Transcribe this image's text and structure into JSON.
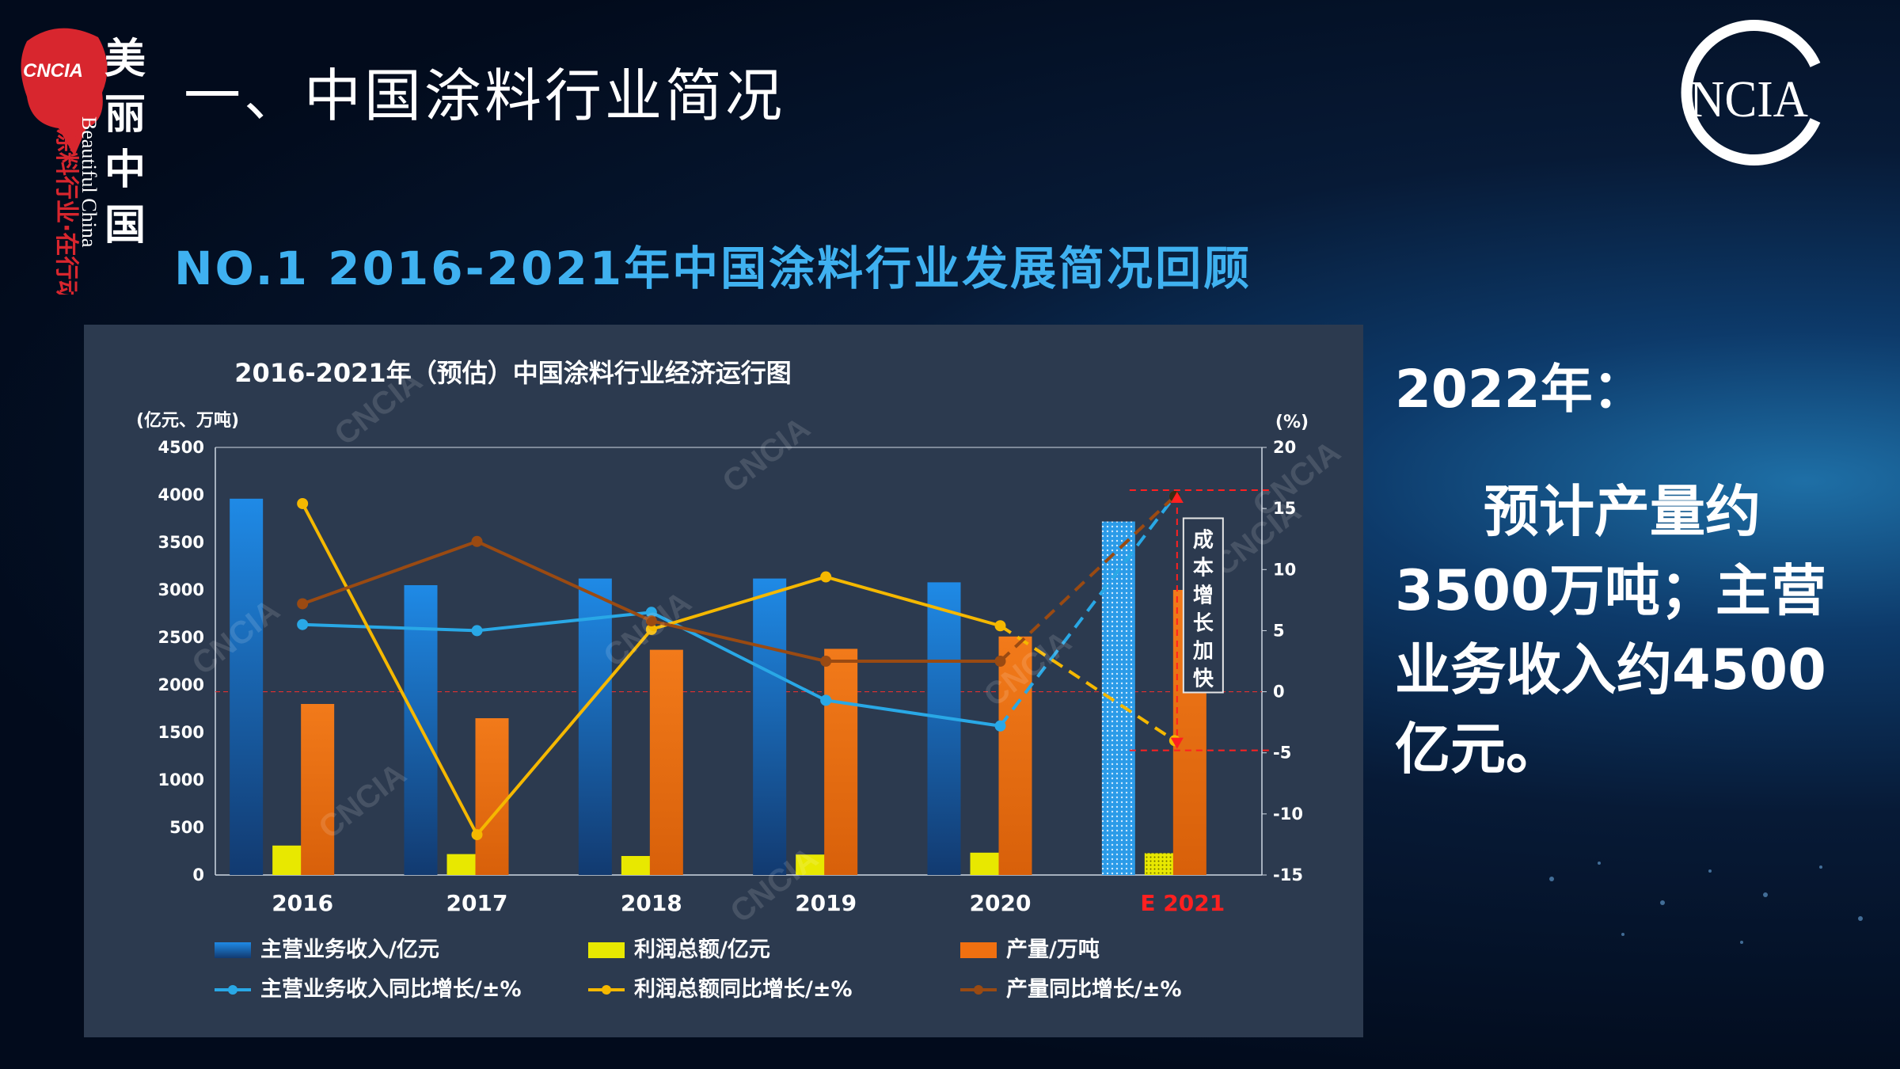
{
  "header": {
    "title": "一、中国涂料行业简况",
    "subtitle": "NO.1 2016-2021年中国涂料行业发展简况回顾"
  },
  "logo_left": {
    "badge": "CNCIA",
    "slogan_cn": "美丽中国",
    "slogan_en": "Beautiful China",
    "slogan_sub": "涂料行业·在行动"
  },
  "logo_right": {
    "text": "CNCIA"
  },
  "colors": {
    "revenue": "#1a7fd6",
    "profit": "#e8e800",
    "output": "#f07010",
    "revenue_growth": "#29a8e6",
    "profit_growth": "#f5b800",
    "output_growth": "#9a4a12",
    "panel": "#2c3a4f",
    "highlight": "#ff2020"
  },
  "chart_data": {
    "type": "bar",
    "title": "2016-2021年（预估）中国涂料行业经济运行图",
    "ylabel_left": "(亿元、万吨)",
    "ylabel_right": "(%)",
    "ylim_left": [
      0,
      4500
    ],
    "ylim_right": [
      -15,
      20
    ],
    "yticks_left": [
      "0",
      "500",
      "1000",
      "1500",
      "2000",
      "2500",
      "3000",
      "3500",
      "4000",
      "4500"
    ],
    "yticks_right": [
      "-15",
      "-10",
      "-5",
      "0",
      "5",
      "10",
      "15",
      "20"
    ],
    "categories": [
      "2016",
      "2017",
      "2018",
      "2019",
      "2020",
      "E 2021"
    ],
    "bar_series": [
      {
        "name": "主营业务收入/亿元",
        "values": [
          3960,
          3050,
          3120,
          3120,
          3080,
          3720
        ]
      },
      {
        "name": "利润总额/亿元",
        "values": [
          310,
          220,
          200,
          215,
          235,
          230
        ]
      },
      {
        "name": "产量/万吨",
        "values": [
          1800,
          1650,
          2370,
          2380,
          2510,
          3000
        ]
      }
    ],
    "line_series": [
      {
        "name": "主营业务收入同比增长/±%",
        "values": [
          5.5,
          5.0,
          6.5,
          -0.7,
          -2.8,
          16
        ]
      },
      {
        "name": "利润总额同比增长/±%",
        "values": [
          15.4,
          -11.7,
          5.1,
          9.4,
          5.4,
          -4
        ]
      },
      {
        "name": "产量同比增长/±%",
        "values": [
          7.2,
          12.3,
          5.8,
          2.5,
          2.5,
          16
        ]
      }
    ],
    "annotation": "成本增长加快",
    "watermark": "CNCIA",
    "legend_position": "bottom"
  },
  "side_note": {
    "year": "2022年：",
    "body": "预计产量约3500万吨；主营业务收入约4500亿元。"
  }
}
